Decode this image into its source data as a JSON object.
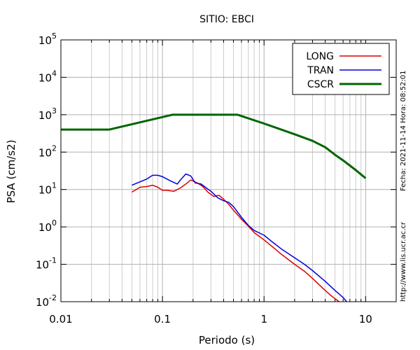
{
  "chart_data": {
    "type": "line",
    "title": "SITIO: EBCI",
    "xlabel": "Periodo (s)",
    "ylabel": "PSA (cm/s2)",
    "x_scale": "log",
    "y_scale": "log",
    "xlim": [
      0.01,
      20
    ],
    "ylim": [
      0.01,
      100000
    ],
    "x_ticks": [
      {
        "value": 0.01,
        "label": "0.01"
      },
      {
        "value": 0.1,
        "label": "0.1"
      },
      {
        "value": 1,
        "label": "1"
      },
      {
        "value": 10,
        "label": "10"
      }
    ],
    "y_ticks": [
      {
        "value": 0.01,
        "base": "10",
        "exp": "-2"
      },
      {
        "value": 0.1,
        "base": "10",
        "exp": "-1"
      },
      {
        "value": 1,
        "base": "10",
        "exp": "0"
      },
      {
        "value": 10,
        "base": "10",
        "exp": "1"
      },
      {
        "value": 100,
        "base": "10",
        "exp": "2"
      },
      {
        "value": 1000,
        "base": "10",
        "exp": "3"
      },
      {
        "value": 10000,
        "base": "10",
        "exp": "4"
      },
      {
        "value": 100000,
        "base": "10",
        "exp": "5"
      }
    ],
    "grid": true,
    "legend_position": "top-right",
    "series": [
      {
        "name": "LONG",
        "color": "#dd0000",
        "points": [
          [
            0.05,
            8.5
          ],
          [
            0.06,
            11.5
          ],
          [
            0.07,
            12
          ],
          [
            0.08,
            13
          ],
          [
            0.09,
            11.5
          ],
          [
            0.1,
            9.5
          ],
          [
            0.11,
            9.5
          ],
          [
            0.13,
            9
          ],
          [
            0.15,
            11
          ],
          [
            0.17,
            14
          ],
          [
            0.19,
            18
          ],
          [
            0.22,
            15
          ],
          [
            0.25,
            12
          ],
          [
            0.28,
            8.5
          ],
          [
            0.32,
            6.5
          ],
          [
            0.36,
            7
          ],
          [
            0.4,
            5.5
          ],
          [
            0.45,
            4
          ],
          [
            0.5,
            2.8
          ],
          [
            0.6,
            1.6
          ],
          [
            0.7,
            1.05
          ],
          [
            0.8,
            0.7
          ],
          [
            1,
            0.45
          ],
          [
            1.2,
            0.3
          ],
          [
            1.5,
            0.18
          ],
          [
            2,
            0.1
          ],
          [
            2.5,
            0.065
          ],
          [
            3,
            0.042
          ],
          [
            3.5,
            0.028
          ],
          [
            4,
            0.02
          ],
          [
            4.5,
            0.015
          ],
          [
            5,
            0.012
          ],
          [
            5.5,
            0.01
          ]
        ]
      },
      {
        "name": "TRAN",
        "color": "#0000dd",
        "points": [
          [
            0.05,
            13
          ],
          [
            0.06,
            16
          ],
          [
            0.07,
            19
          ],
          [
            0.08,
            24
          ],
          [
            0.09,
            24
          ],
          [
            0.1,
            22
          ],
          [
            0.12,
            17
          ],
          [
            0.14,
            14
          ],
          [
            0.15,
            18
          ],
          [
            0.17,
            26
          ],
          [
            0.19,
            23
          ],
          [
            0.21,
            15
          ],
          [
            0.24,
            14
          ],
          [
            0.27,
            11
          ],
          [
            0.3,
            9
          ],
          [
            0.35,
            6
          ],
          [
            0.4,
            5
          ],
          [
            0.45,
            4.5
          ],
          [
            0.5,
            3.5
          ],
          [
            0.6,
            1.8
          ],
          [
            0.7,
            1.1
          ],
          [
            0.8,
            0.8
          ],
          [
            1,
            0.6
          ],
          [
            1.2,
            0.4
          ],
          [
            1.5,
            0.25
          ],
          [
            2,
            0.15
          ],
          [
            2.5,
            0.1
          ],
          [
            3,
            0.068
          ],
          [
            4,
            0.035
          ],
          [
            5,
            0.02
          ],
          [
            6,
            0.013
          ],
          [
            6.5,
            0.01
          ]
        ]
      },
      {
        "name": "CSCR",
        "color": "#006400",
        "points": [
          [
            0.01,
            400
          ],
          [
            0.03,
            400
          ],
          [
            0.125,
            1000
          ],
          [
            0.55,
            1000
          ],
          [
            1,
            580
          ],
          [
            2,
            300
          ],
          [
            3,
            200
          ],
          [
            4,
            135
          ],
          [
            5,
            85
          ],
          [
            6,
            60
          ],
          [
            8,
            33
          ],
          [
            10,
            20
          ]
        ]
      }
    ]
  },
  "side_text": {
    "timestamp": "Fecha: 2021-11-14 Hora: 08:52:01",
    "website": "http://www.lis.ucr.ac.cr"
  }
}
